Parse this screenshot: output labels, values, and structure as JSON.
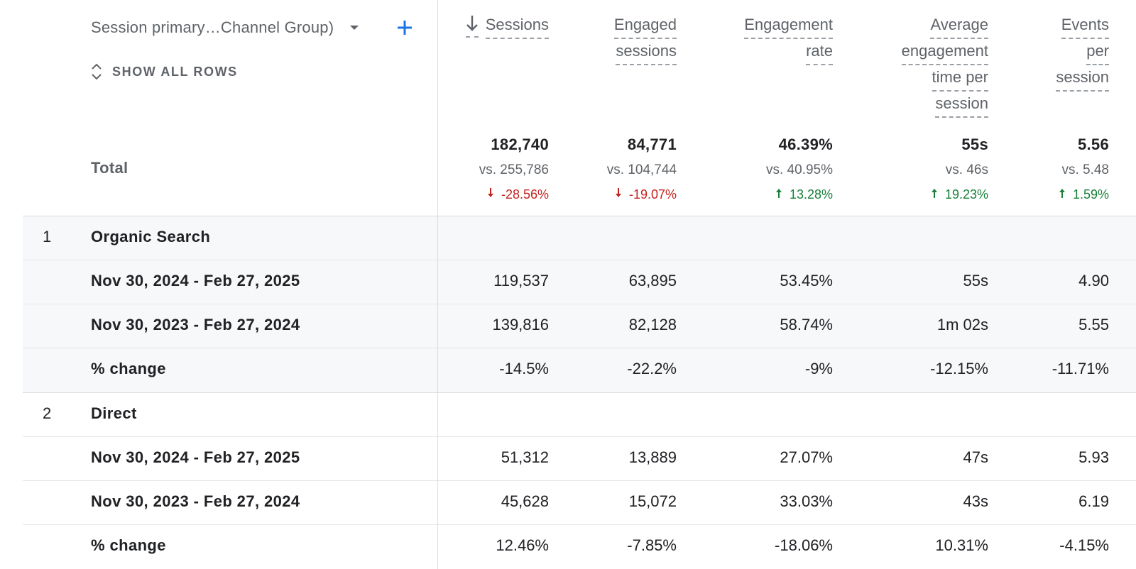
{
  "dimension": {
    "selector_label": "Session primary…Channel Group)",
    "show_all_rows": "SHOW ALL ROWS"
  },
  "columns": [
    {
      "id": "sessions",
      "lines": [
        "Sessions"
      ],
      "sorted": true
    },
    {
      "id": "engaged_sessions",
      "lines": [
        "Engaged",
        "sessions"
      ]
    },
    {
      "id": "engagement_rate",
      "lines": [
        "Engagement",
        "rate"
      ]
    },
    {
      "id": "avg_engagement_time",
      "lines": [
        "Average",
        "engagement",
        "time per",
        "session"
      ]
    },
    {
      "id": "events_per_session",
      "lines": [
        "Events",
        "per",
        "session"
      ]
    }
  ],
  "total": {
    "label": "Total",
    "values": [
      "182,740",
      "84,771",
      "46.39%",
      "55s",
      "5.56"
    ],
    "vs": [
      "vs. 255,786",
      "vs. 104,744",
      "vs. 40.95%",
      "vs. 46s",
      "vs. 5.48"
    ],
    "change": [
      "-28.56%",
      "-19.07%",
      "13.28%",
      "19.23%",
      "1.59%"
    ],
    "change_direction": [
      "down",
      "down",
      "up",
      "up",
      "up"
    ]
  },
  "groups": [
    {
      "index": "1",
      "name": "Organic Search",
      "rows": [
        {
          "label": "Nov 30, 2024 - Feb 27, 2025",
          "values": [
            "119,537",
            "63,895",
            "53.45%",
            "55s",
            "4.90"
          ]
        },
        {
          "label": "Nov 30, 2023 - Feb 27, 2024",
          "values": [
            "139,816",
            "82,128",
            "58.74%",
            "1m 02s",
            "5.55"
          ]
        },
        {
          "label": "% change",
          "values": [
            "-14.5%",
            "-22.2%",
            "-9%",
            "-12.15%",
            "-11.71%"
          ]
        }
      ]
    },
    {
      "index": "2",
      "name": "Direct",
      "rows": [
        {
          "label": "Nov 30, 2024 - Feb 27, 2025",
          "values": [
            "51,312",
            "13,889",
            "27.07%",
            "47s",
            "5.93"
          ]
        },
        {
          "label": "Nov 30, 2023 - Feb 27, 2024",
          "values": [
            "45,628",
            "15,072",
            "33.03%",
            "43s",
            "6.19"
          ]
        },
        {
          "label": "% change",
          "values": [
            "12.46%",
            "-7.85%",
            "-18.06%",
            "10.31%",
            "-4.15%"
          ]
        }
      ]
    }
  ],
  "colors": {
    "accent": "#1a73e8",
    "positive": "#188038",
    "negative": "#c5221f",
    "highlight_row": "#f8f9fa"
  }
}
